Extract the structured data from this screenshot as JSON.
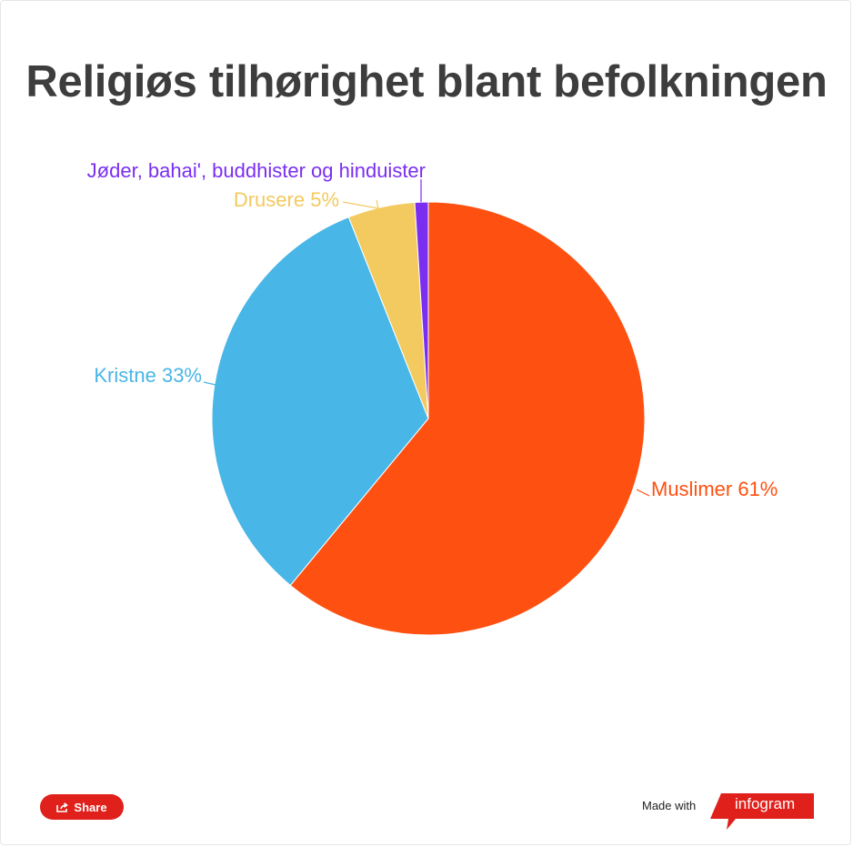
{
  "title": "Religiøs tilhørighet blant befolkningen",
  "chart_data": {
    "type": "pie",
    "title": "Religiøs tilhørighet blant befolkningen",
    "slices": [
      {
        "label": "Muslimer 61%",
        "name": "Muslimer",
        "value": 61,
        "color": "#fe5011"
      },
      {
        "label": "Kristne 33%",
        "name": "Kristne",
        "value": 33,
        "color": "#48b6e6"
      },
      {
        "label": "Drusere 5%",
        "name": "Drusere",
        "value": 5,
        "color": "#f3ca5f"
      },
      {
        "label": "Jøder, bahai', buddhister og hinduister",
        "name": "Jøder, bahai', buddhister og hinduister",
        "value": 1,
        "color": "#7a2ff0"
      }
    ]
  },
  "footer": {
    "share_label": "Share",
    "made_with": "Made with",
    "brand": "infogram",
    "share_color": "#e0201b"
  }
}
